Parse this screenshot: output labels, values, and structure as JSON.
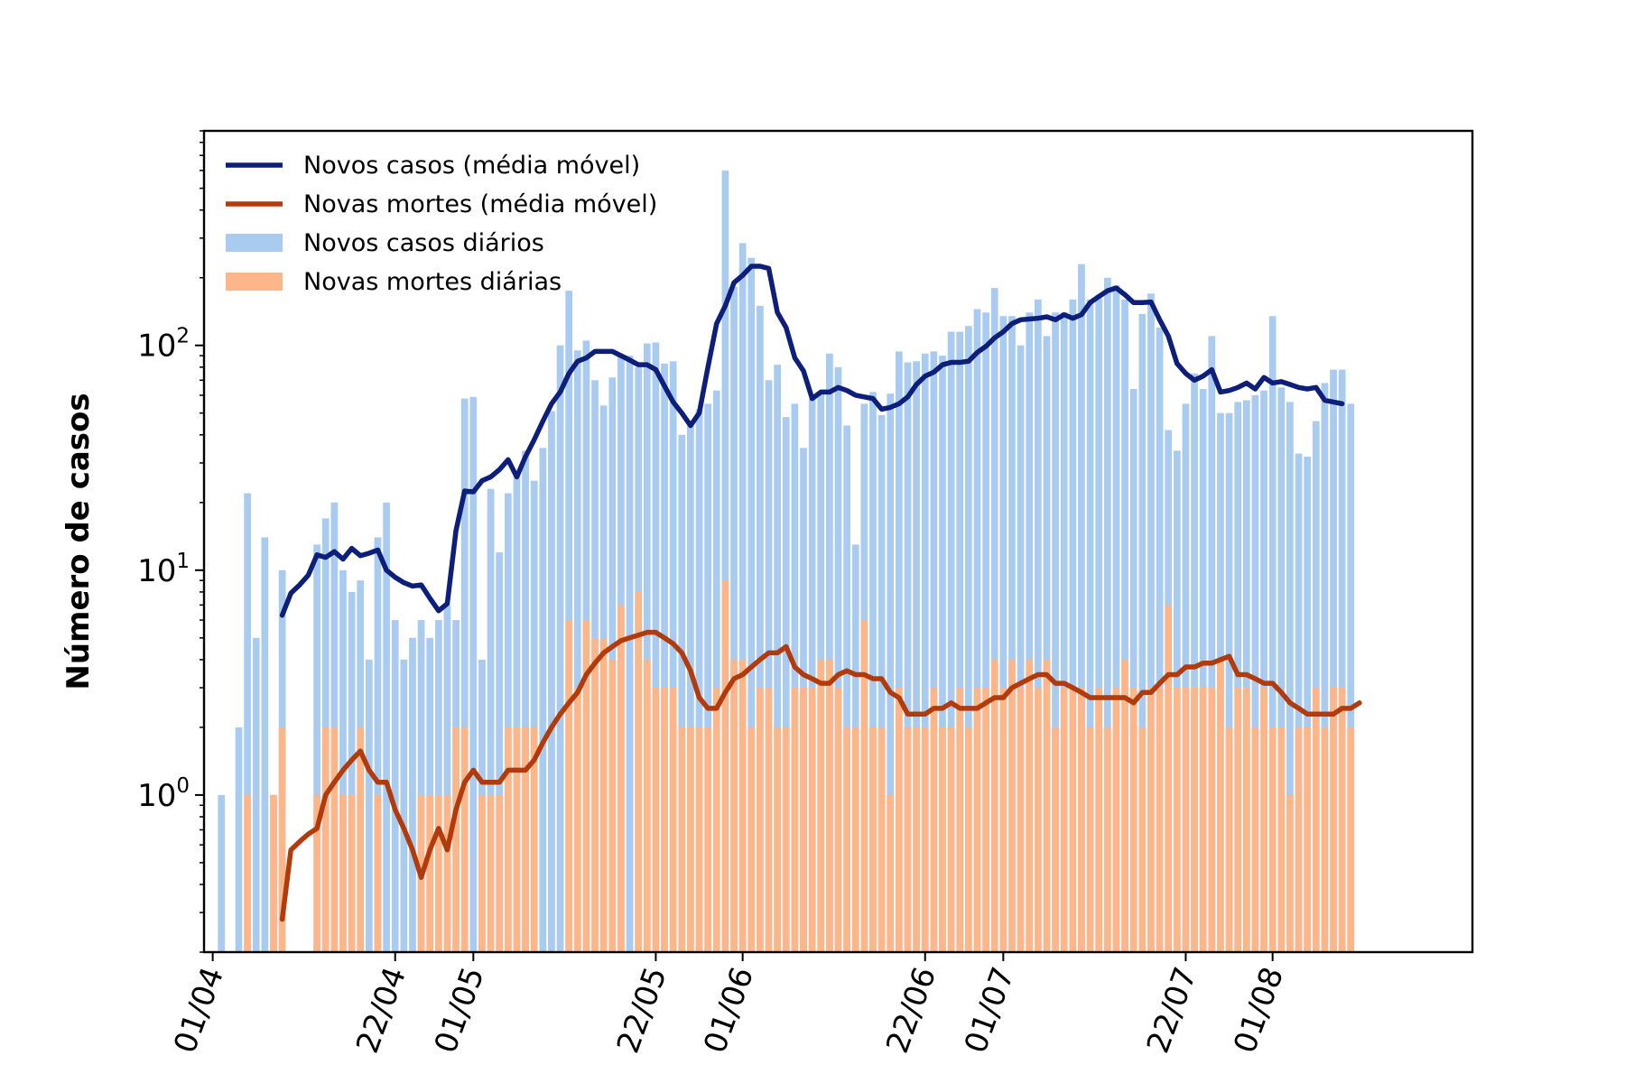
{
  "chart_data": {
    "type": "bar",
    "ylabel": "Número de casos",
    "yscale": "log",
    "ylim": [
      0.2,
      900
    ],
    "x_tick_labels": [
      "01/04",
      "22/04",
      "01/05",
      "22/05",
      "01/06",
      "22/06",
      "01/07",
      "22/07",
      "01/08"
    ],
    "x_tick_dates": [
      "2020-04-01",
      "2020-04-22",
      "2020-05-01",
      "2020-05-22",
      "2020-06-01",
      "2020-06-22",
      "2020-07-01",
      "2020-07-22",
      "2020-08-01"
    ],
    "y_ticks": [
      {
        "value": 1,
        "base": "10",
        "exp": "0"
      },
      {
        "value": 10,
        "base": "10",
        "exp": "1"
      },
      {
        "value": 100,
        "base": "10",
        "exp": "2"
      }
    ],
    "x_range": [
      "2020-03-31",
      "2020-08-24"
    ],
    "dates_start": "2020-04-02",
    "legend": {
      "position": "upper-left",
      "entries": [
        {
          "label": "Novos casos (média móvel)",
          "kind": "line",
          "color": "#0d1f7a"
        },
        {
          "label": "Novas mortes (média móvel)",
          "kind": "line",
          "color": "#b23a0b"
        },
        {
          "label": "Novos casos diários",
          "kind": "bar",
          "color": "#a8cbef"
        },
        {
          "label": "Novas mortes diárias",
          "kind": "bar",
          "color": "#fdb68a"
        }
      ]
    },
    "series": [
      {
        "name": "Novos casos diários",
        "kind": "bar",
        "color": "#a8cbef",
        "values": [
          1,
          0,
          2,
          22,
          5,
          14,
          1,
          10,
          0,
          0,
          0,
          13,
          17,
          20,
          10,
          8,
          9,
          4,
          14,
          20,
          6,
          4,
          5,
          6,
          5,
          6,
          7,
          6,
          58,
          59,
          4,
          23,
          12,
          22,
          27,
          34,
          25,
          35,
          51,
          100,
          175,
          95,
          105,
          70,
          54,
          72,
          90,
          90,
          80,
          102,
          103,
          83,
          85,
          40,
          45,
          52,
          55,
          63,
          600,
          182,
          285,
          245,
          150,
          70,
          82,
          48,
          55,
          35,
          58,
          62,
          92,
          80,
          44,
          13,
          55,
          62,
          49,
          61,
          94,
          84,
          85,
          92,
          94,
          90,
          115,
          115,
          122,
          145,
          140,
          180,
          135,
          135,
          100,
          140,
          160,
          110,
          140,
          140,
          160,
          230,
          160,
          162,
          200,
          185,
          160,
          64,
          138,
          170,
          120,
          42,
          34,
          55,
          75,
          64,
          110,
          50,
          50,
          56,
          57,
          60,
          63,
          135,
          65,
          56,
          33,
          32,
          46,
          68,
          78,
          78,
          55
        ],
        "labels_missing": false
      },
      {
        "name": "Novas mortes diárias",
        "kind": "bar",
        "color": "#fdb68a",
        "values": [
          0,
          0,
          0,
          1,
          0,
          0,
          1,
          2,
          0,
          0,
          0,
          1,
          2,
          2,
          1,
          1,
          2,
          0,
          1,
          0,
          0,
          0,
          0,
          1,
          1,
          1,
          1,
          2,
          2,
          0,
          1,
          1,
          1,
          2,
          2,
          2,
          2,
          0,
          0,
          0,
          6,
          3,
          6,
          5,
          5,
          4,
          7,
          0,
          8,
          4,
          3,
          3,
          3,
          2,
          2,
          2,
          2,
          3,
          9,
          4,
          4,
          2,
          3,
          3,
          2,
          2,
          3,
          3,
          3,
          4,
          4,
          3,
          2,
          2,
          6,
          2,
          2,
          1,
          3,
          2,
          2,
          2,
          3,
          2,
          2,
          3,
          2,
          3,
          3,
          4,
          3,
          4,
          3,
          4,
          3,
          4,
          2,
          3,
          3,
          3,
          2,
          3,
          2,
          3,
          4,
          3,
          2,
          3,
          3,
          7,
          3,
          3,
          3,
          3,
          3,
          4,
          2,
          3,
          3,
          2,
          3,
          2,
          2,
          1,
          2,
          2,
          3,
          2,
          3,
          3,
          2
        ]
      },
      {
        "name": "Novos casos (média móvel)",
        "kind": "line",
        "color": "#0d1f7a",
        "start_date": "2020-04-09",
        "values": [
          6.3,
          7.9,
          8.6,
          9.5,
          11.7,
          11.4,
          12.1,
          11.2,
          12.5,
          11.6,
          11.9,
          12.3,
          10.0,
          9.3,
          8.8,
          8.5,
          8.6,
          7.5,
          6.6,
          7.1,
          15.0,
          22.5,
          22.3,
          25.0,
          26.0,
          28.0,
          31.0,
          26.0,
          32.0,
          38.0,
          46.0,
          55.0,
          62.0,
          75.0,
          85.0,
          88.0,
          94.0,
          94.0,
          94.0,
          90.0,
          86.0,
          82.0,
          82.0,
          78.0,
          66.0,
          56.0,
          50.0,
          44.0,
          50.0,
          80.0,
          125.0,
          150.0,
          190.0,
          205.0,
          225.0,
          225.0,
          220.0,
          140.0,
          120.0,
          88.0,
          77.0,
          58.0,
          62.0,
          62.0,
          65.0,
          63.0,
          60.0,
          59.0,
          58.0,
          52.0,
          53.0,
          55.0,
          59.0,
          67.0,
          73.0,
          76.0,
          82.0,
          84.0,
          84.0,
          85.0,
          93.0,
          99.0,
          108.0,
          115.0,
          125.0,
          130.0,
          131.0,
          132.0,
          134.0,
          130.0,
          137.0,
          132.0,
          137.0,
          155.0,
          165.0,
          175.0,
          180.0,
          168.0,
          155.0,
          155.0,
          156.0,
          130.0,
          110.0,
          83.0,
          75.0,
          70.0,
          73.0,
          78.0,
          62.0,
          63.0,
          65.0,
          68.0,
          64.0,
          72.0,
          68.0,
          69.0,
          67.0,
          65.0,
          64.0,
          65.0,
          57.0,
          56.0,
          55.0
        ],
        "note_omit": true
      },
      {
        "name": "Novas mortes (média móvel)",
        "kind": "line",
        "color": "#b23a0b",
        "start_date": "2020-04-09",
        "values": [
          0.28,
          0.57,
          0.62,
          0.67,
          0.71,
          1.0,
          1.14,
          1.29,
          1.43,
          1.57,
          1.29,
          1.14,
          1.14,
          0.86,
          0.71,
          0.57,
          0.43,
          0.57,
          0.71,
          0.57,
          0.86,
          1.14,
          1.29,
          1.14,
          1.14,
          1.14,
          1.29,
          1.29,
          1.29,
          1.43,
          1.71,
          2.0,
          2.29,
          2.57,
          2.86,
          3.43,
          3.86,
          4.29,
          4.57,
          4.86,
          5.0,
          5.14,
          5.29,
          5.29,
          5.0,
          4.71,
          4.29,
          3.57,
          2.71,
          2.43,
          2.43,
          2.86,
          3.29,
          3.43,
          3.71,
          4.0,
          4.29,
          4.29,
          4.57,
          3.71,
          3.43,
          3.29,
          3.14,
          3.14,
          3.43,
          3.57,
          3.43,
          3.43,
          3.29,
          3.29,
          2.86,
          2.71,
          2.29,
          2.29,
          2.29,
          2.43,
          2.43,
          2.57,
          2.43,
          2.43,
          2.43,
          2.57,
          2.71,
          2.71,
          3.0,
          3.14,
          3.29,
          3.43,
          3.43,
          3.14,
          3.14,
          3.0,
          2.86,
          2.71,
          2.71,
          2.71,
          2.71,
          2.71,
          2.57,
          2.86,
          2.86,
          3.14,
          3.43,
          3.43,
          3.71,
          3.71,
          3.86,
          3.86,
          4.0,
          4.14,
          3.43,
          3.43,
          3.29,
          3.14,
          3.14,
          2.86,
          2.57,
          2.43,
          2.29,
          2.29,
          2.29,
          2.29,
          2.43,
          2.43,
          2.57
        ]
      }
    ]
  }
}
